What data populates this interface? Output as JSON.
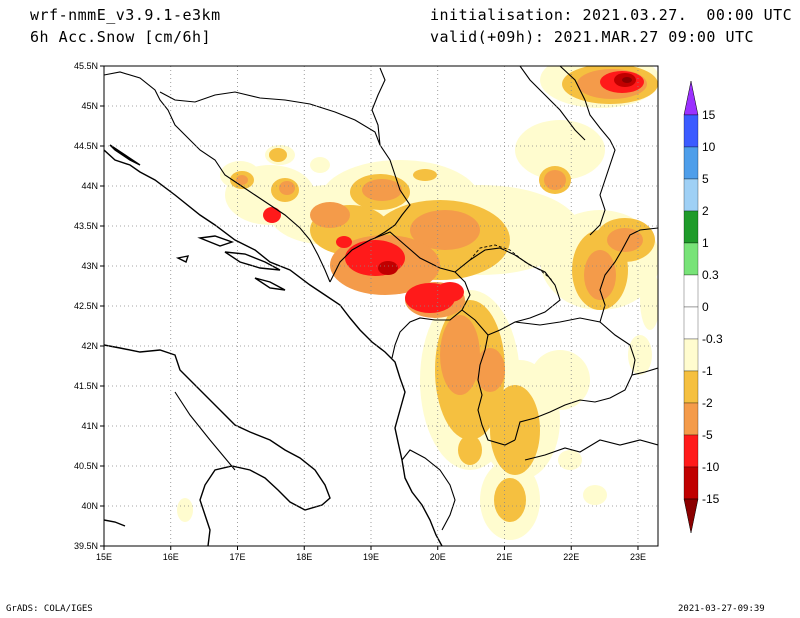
{
  "header": {
    "model": "wrf-nmmE_v3.9.1-e3km",
    "field": "6h Acc.Snow [cm/6h]",
    "init": "initialisation: 2021.03.27.  00:00 UTC",
    "valid": "valid(+09h): 2021.MAR.27 09:00 UTC"
  },
  "footer": {
    "credit": "GrADS: COLA/IGES",
    "timestamp": "2021-03-27-09:39"
  },
  "map": {
    "lon_range": [
      15,
      23.3
    ],
    "lat_range": [
      39.5,
      45.5
    ],
    "x_ticks": [
      "15E",
      "16E",
      "17E",
      "18E",
      "19E",
      "20E",
      "21E",
      "22E",
      "23E"
    ],
    "y_ticks": [
      "45.5N",
      "45N",
      "44.5N",
      "44N",
      "43.5N",
      "43N",
      "42.5N",
      "42N",
      "41.5N",
      "41N",
      "40.5N",
      "40N",
      "39.5N"
    ]
  },
  "colorbar": {
    "labels": [
      "15",
      "10",
      "5",
      "2",
      "1",
      "0.3",
      "0",
      "-0.3",
      "-1",
      "-2",
      "-5",
      "-10",
      "-15"
    ],
    "colors": {
      "purple": "#9b30ff",
      "blue": "#3b5bff",
      "mid_blue": "#4e9eea",
      "light_blue": "#9fd0f5",
      "green": "#1f9b2a",
      "light_green": "#78e378",
      "white": "#ffffff",
      "pale_yellow": "#fffccf",
      "yellow": "#f5c040",
      "orange": "#f49b4a",
      "red": "#ff1a1a",
      "dark_red": "#c00000",
      "darkest_red": "#8b0000"
    }
  }
}
